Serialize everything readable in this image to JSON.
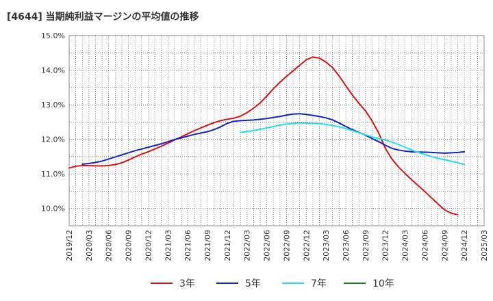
{
  "title": "[4644]  当期純利益マージンの平均値の推移",
  "chart_data": {
    "type": "line",
    "title": "[4644]  当期純利益マージンの平均値の推移",
    "xlabel": "",
    "ylabel": "",
    "ylim": [
      9.5,
      15.0
    ],
    "y_ticks": [
      "10.0%",
      "11.0%",
      "12.0%",
      "13.0%",
      "14.0%",
      "15.0%"
    ],
    "y_tick_values": [
      10,
      11,
      12,
      13,
      14,
      15
    ],
    "x_ticks": [
      "2019/12",
      "2020/03",
      "2020/06",
      "2020/09",
      "2020/12",
      "2021/03",
      "2021/06",
      "2021/09",
      "2021/12",
      "2022/03",
      "2022/06",
      "2022/09",
      "2022/12",
      "2023/03",
      "2023/06",
      "2023/09",
      "2023/12",
      "2024/03",
      "2024/06",
      "2024/09",
      "2024/12",
      "2025/03"
    ],
    "grid": true,
    "legend_position": "bottom",
    "colors": {
      "3年": "#dd1111",
      "5年": "#1122cc",
      "7年": "#22ddee",
      "10年": "#118811",
      "grid": "#555555",
      "axis": "#888888"
    },
    "series": [
      {
        "name": "3年",
        "color": "#dd1111",
        "points": [
          [
            "2019/12",
            11.17
          ],
          [
            "2020/01",
            11.22
          ],
          [
            "2020/02",
            11.24
          ],
          [
            "2020/03",
            11.24
          ],
          [
            "2020/04",
            11.23
          ],
          [
            "2020/05",
            11.23
          ],
          [
            "2020/06",
            11.24
          ],
          [
            "2020/07",
            11.27
          ],
          [
            "2020/08",
            11.32
          ],
          [
            "2020/09",
            11.4
          ],
          [
            "2020/10",
            11.49
          ],
          [
            "2020/11",
            11.57
          ],
          [
            "2020/12",
            11.64
          ],
          [
            "2021/01",
            11.72
          ],
          [
            "2021/02",
            11.8
          ],
          [
            "2021/03",
            11.89
          ],
          [
            "2021/04",
            11.98
          ],
          [
            "2021/05",
            12.07
          ],
          [
            "2021/06",
            12.16
          ],
          [
            "2021/07",
            12.25
          ],
          [
            "2021/08",
            12.33
          ],
          [
            "2021/09",
            12.41
          ],
          [
            "2021/10",
            12.48
          ],
          [
            "2021/11",
            12.54
          ],
          [
            "2021/12",
            12.58
          ],
          [
            "2022/01",
            12.61
          ],
          [
            "2022/02",
            12.67
          ],
          [
            "2022/03",
            12.77
          ],
          [
            "2022/04",
            12.9
          ],
          [
            "2022/05",
            13.05
          ],
          [
            "2022/06",
            13.25
          ],
          [
            "2022/07",
            13.46
          ],
          [
            "2022/08",
            13.65
          ],
          [
            "2022/09",
            13.82
          ],
          [
            "2022/10",
            13.98
          ],
          [
            "2022/11",
            14.14
          ],
          [
            "2022/12",
            14.3
          ],
          [
            "2023/01",
            14.38
          ],
          [
            "2023/02",
            14.35
          ],
          [
            "2023/03",
            14.23
          ],
          [
            "2023/04",
            14.07
          ],
          [
            "2023/05",
            13.83
          ],
          [
            "2023/06",
            13.55
          ],
          [
            "2023/07",
            13.28
          ],
          [
            "2023/08",
            13.04
          ],
          [
            "2023/09",
            12.82
          ],
          [
            "2023/10",
            12.53
          ],
          [
            "2023/11",
            12.18
          ],
          [
            "2023/12",
            11.74
          ],
          [
            "2024/01",
            11.43
          ],
          [
            "2024/02",
            11.2
          ],
          [
            "2024/03",
            11.01
          ],
          [
            "2024/04",
            10.83
          ],
          [
            "2024/05",
            10.66
          ],
          [
            "2024/06",
            10.49
          ],
          [
            "2024/07",
            10.31
          ],
          [
            "2024/08",
            10.13
          ],
          [
            "2024/09",
            9.96
          ],
          [
            "2024/10",
            9.86
          ],
          [
            "2024/11",
            9.82
          ]
        ]
      },
      {
        "name": "5年",
        "color": "#1122cc",
        "points": [
          [
            "2020/02",
            11.28
          ],
          [
            "2020/03",
            11.3
          ],
          [
            "2020/04",
            11.33
          ],
          [
            "2020/05",
            11.37
          ],
          [
            "2020/06",
            11.43
          ],
          [
            "2020/07",
            11.49
          ],
          [
            "2020/08",
            11.55
          ],
          [
            "2020/09",
            11.61
          ],
          [
            "2020/10",
            11.67
          ],
          [
            "2020/11",
            11.72
          ],
          [
            "2020/12",
            11.77
          ],
          [
            "2021/01",
            11.82
          ],
          [
            "2021/02",
            11.87
          ],
          [
            "2021/03",
            11.93
          ],
          [
            "2021/04",
            11.99
          ],
          [
            "2021/05",
            12.04
          ],
          [
            "2021/06",
            12.09
          ],
          [
            "2021/07",
            12.14
          ],
          [
            "2021/08",
            12.18
          ],
          [
            "2021/09",
            12.22
          ],
          [
            "2021/10",
            12.28
          ],
          [
            "2021/11",
            12.36
          ],
          [
            "2021/12",
            12.46
          ],
          [
            "2022/01",
            12.52
          ],
          [
            "2022/02",
            12.54
          ],
          [
            "2022/03",
            12.55
          ],
          [
            "2022/04",
            12.56
          ],
          [
            "2022/05",
            12.58
          ],
          [
            "2022/06",
            12.6
          ],
          [
            "2022/07",
            12.63
          ],
          [
            "2022/08",
            12.66
          ],
          [
            "2022/09",
            12.7
          ],
          [
            "2022/10",
            12.73
          ],
          [
            "2022/11",
            12.74
          ],
          [
            "2022/12",
            12.72
          ],
          [
            "2023/01",
            12.69
          ],
          [
            "2023/02",
            12.66
          ],
          [
            "2023/03",
            12.62
          ],
          [
            "2023/04",
            12.56
          ],
          [
            "2023/05",
            12.47
          ],
          [
            "2023/06",
            12.37
          ],
          [
            "2023/07",
            12.28
          ],
          [
            "2023/08",
            12.2
          ],
          [
            "2023/09",
            12.12
          ],
          [
            "2023/10",
            12.02
          ],
          [
            "2023/11",
            11.93
          ],
          [
            "2023/12",
            11.83
          ],
          [
            "2024/01",
            11.74
          ],
          [
            "2024/02",
            11.69
          ],
          [
            "2024/03",
            11.66
          ],
          [
            "2024/04",
            11.64
          ],
          [
            "2024/05",
            11.63
          ],
          [
            "2024/06",
            11.63
          ],
          [
            "2024/07",
            11.62
          ],
          [
            "2024/08",
            11.61
          ],
          [
            "2024/09",
            11.6
          ],
          [
            "2024/10",
            11.61
          ],
          [
            "2024/11",
            11.62
          ],
          [
            "2024/12",
            11.64
          ]
        ]
      },
      {
        "name": "7年",
        "color": "#22ddee",
        "points": [
          [
            "2022/02",
            12.2
          ],
          [
            "2022/03",
            12.22
          ],
          [
            "2022/04",
            12.25
          ],
          [
            "2022/05",
            12.29
          ],
          [
            "2022/06",
            12.33
          ],
          [
            "2022/07",
            12.37
          ],
          [
            "2022/08",
            12.41
          ],
          [
            "2022/09",
            12.44
          ],
          [
            "2022/10",
            12.46
          ],
          [
            "2022/11",
            12.47
          ],
          [
            "2022/12",
            12.47
          ],
          [
            "2023/01",
            12.46
          ],
          [
            "2023/02",
            12.45
          ],
          [
            "2023/03",
            12.43
          ],
          [
            "2023/04",
            12.4
          ],
          [
            "2023/05",
            12.36
          ],
          [
            "2023/06",
            12.31
          ],
          [
            "2023/07",
            12.25
          ],
          [
            "2023/08",
            12.19
          ],
          [
            "2023/09",
            12.13
          ],
          [
            "2023/10",
            12.07
          ],
          [
            "2023/11",
            12.02
          ],
          [
            "2023/12",
            11.98
          ],
          [
            "2024/01",
            11.92
          ],
          [
            "2024/02",
            11.85
          ],
          [
            "2024/03",
            11.77
          ],
          [
            "2024/04",
            11.69
          ],
          [
            "2024/05",
            11.62
          ],
          [
            "2024/06",
            11.56
          ],
          [
            "2024/07",
            11.5
          ],
          [
            "2024/08",
            11.45
          ],
          [
            "2024/09",
            11.41
          ],
          [
            "2024/10",
            11.37
          ],
          [
            "2024/11",
            11.32
          ],
          [
            "2024/12",
            11.27
          ]
        ]
      },
      {
        "name": "10年",
        "color": "#118811",
        "points": []
      }
    ]
  }
}
